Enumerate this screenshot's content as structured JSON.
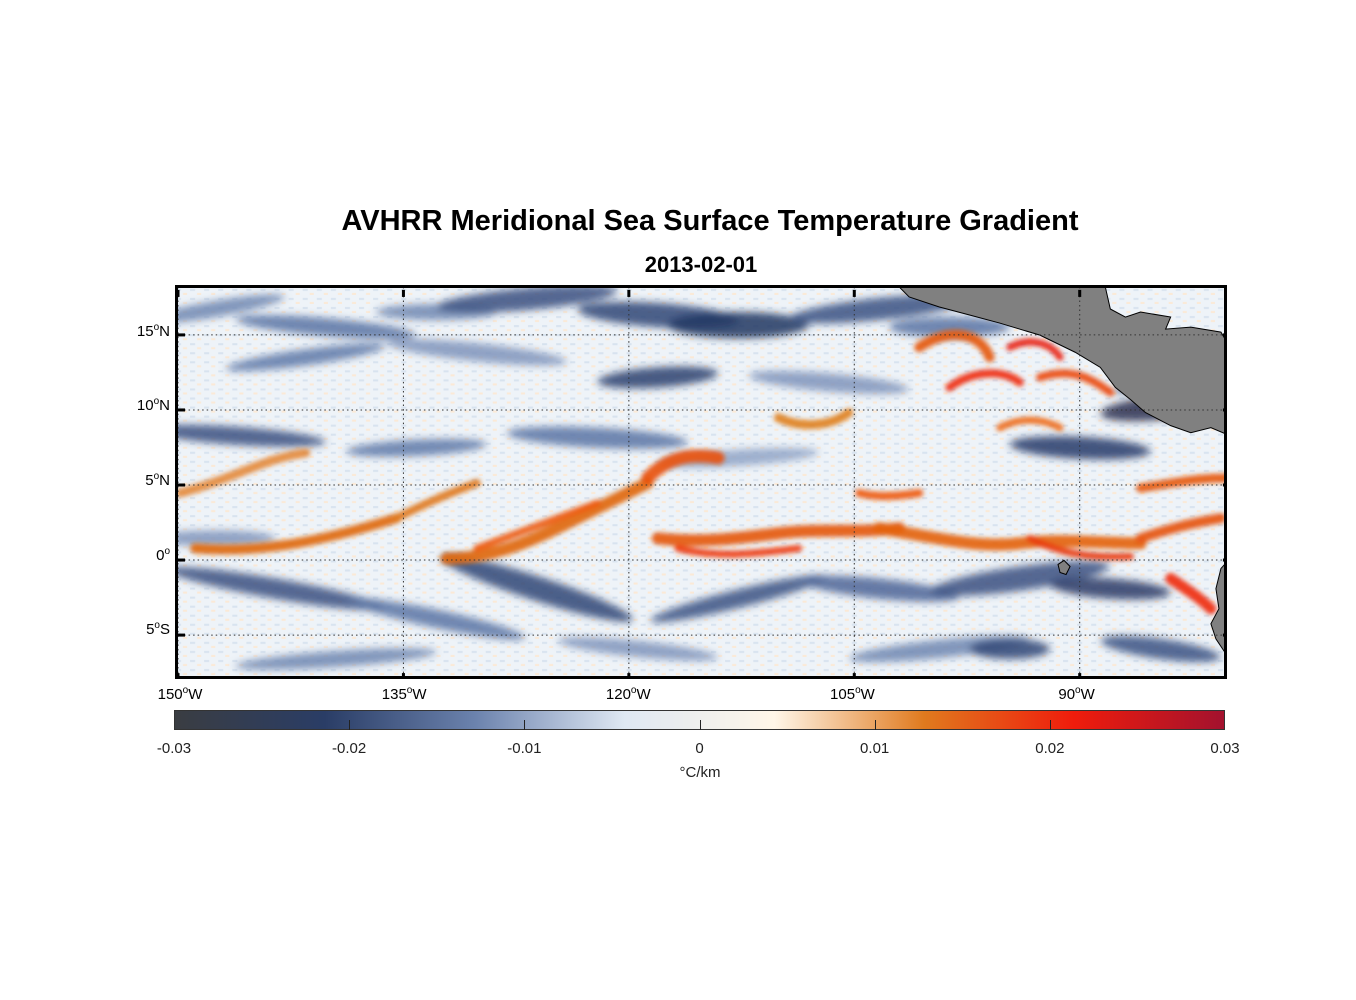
{
  "title": "AVHRR Meridional Sea Surface Temperature Gradient",
  "subtitle": "2013-02-01",
  "map": {
    "lon_range": [
      -150,
      -80
    ],
    "lat_range": [
      -8,
      18
    ],
    "grid": "dotted",
    "land_color": "#808080",
    "lat_ticks": [
      {
        "value": 15,
        "num": "15",
        "hemi": "N"
      },
      {
        "value": 10,
        "num": "10",
        "hemi": "N"
      },
      {
        "value": 5,
        "num": "5",
        "hemi": "N"
      },
      {
        "value": 0,
        "num": "0",
        "hemi": ""
      },
      {
        "value": -5,
        "num": "5",
        "hemi": "S"
      }
    ],
    "lon_ticks": [
      {
        "value": -150,
        "num": "150",
        "hemi": "W"
      },
      {
        "value": -135,
        "num": "135",
        "hemi": "W"
      },
      {
        "value": -120,
        "num": "120",
        "hemi": "W"
      },
      {
        "value": -105,
        "num": "105",
        "hemi": "W"
      },
      {
        "value": -90,
        "num": "90",
        "hemi": "W"
      }
    ]
  },
  "colorbar": {
    "min": -0.03,
    "max": 0.03,
    "tick_labels": [
      "-0.03",
      "-0.02",
      "-0.01",
      "0",
      "0.01",
      "0.02",
      "0.03"
    ],
    "unit": "°C/km",
    "colors": [
      "#3a3d42",
      "#2a3d66",
      "#6b82ad",
      "#dfe8f3",
      "#fff6e8",
      "#e07a1e",
      "#ef1c0c",
      "#a3122e"
    ]
  }
}
